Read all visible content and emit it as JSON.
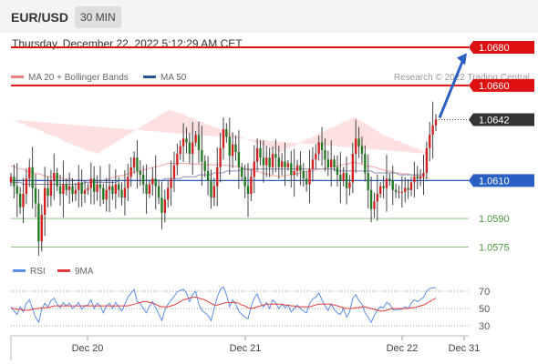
{
  "header": {
    "pair": "EUR/USD",
    "timeframe": "30 MIN"
  },
  "datetime": "Thursday, December 22, 2022 5:12:29 AM CET",
  "legend": {
    "ma20": {
      "label": "MA 20 + Bollinger Bands",
      "color": "#f08080"
    },
    "ma50": {
      "label": "MA 50",
      "color": "#2a5599"
    }
  },
  "credit": "Research © 2022 Trading Central",
  "rsi_legend": {
    "rsi": {
      "label": "RSI",
      "color": "#5b8ee6"
    },
    "ma9": {
      "label": "9MA",
      "color": "#e33b3b"
    }
  },
  "chart_data": {
    "type": "candlestick",
    "instrument": "EUR/USD",
    "interval": "30 MIN",
    "ylim": [
      1.057,
      1.0685
    ],
    "levels": [
      {
        "label": "1.0680",
        "value": 1.068,
        "kind": "resistance",
        "color": "#dd1111"
      },
      {
        "label": "1.0660",
        "value": 1.066,
        "kind": "resistance",
        "color": "#dd1111"
      },
      {
        "label": "1.0642",
        "value": 1.0642,
        "kind": "last",
        "color": "#333333"
      },
      {
        "label": "1.0610",
        "value": 1.061,
        "kind": "pivot",
        "color": "#2a5fc4"
      },
      {
        "label": "1.0590",
        "value": 1.059,
        "kind": "support",
        "color": "#4c9a3c"
      },
      {
        "label": "1.0575",
        "value": 1.0575,
        "kind": "support",
        "color": "#4c9a3c"
      }
    ],
    "x_ticks": [
      "Dec 20",
      "Dec 21",
      "Dec 22",
      "Dec 31"
    ],
    "projection": {
      "from": 1.0642,
      "to": 1.0676,
      "color": "#2a5fc4"
    },
    "candle_closes": [
      1.0612,
      1.0607,
      1.0603,
      1.0596,
      1.0603,
      1.0611,
      1.0617,
      1.0606,
      1.0598,
      1.0578,
      1.0592,
      1.0606,
      1.0602,
      1.061,
      1.0614,
      1.0607,
      1.0603,
      1.0608,
      1.0605,
      1.0607,
      1.0603,
      1.0605,
      1.0609,
      1.0603,
      1.0605,
      1.0606,
      1.0611,
      1.0604,
      1.0608,
      1.0606,
      1.06,
      1.0605,
      1.0607,
      1.0603,
      1.0608,
      1.0605,
      1.0601,
      1.0606,
      1.0612,
      1.0617,
      1.0622,
      1.0615,
      1.0613,
      1.0608,
      1.0603,
      1.0608,
      1.0611,
      1.0607,
      1.0601,
      1.0593,
      1.06,
      1.0606,
      1.0611,
      1.0618,
      1.0624,
      1.0628,
      1.0632,
      1.063,
      1.0624,
      1.063,
      1.0634,
      1.0626,
      1.062,
      1.0615,
      1.061,
      1.0601,
      1.0607,
      1.0617,
      1.0627,
      1.0637,
      1.0633,
      1.0623,
      1.0629,
      1.0625,
      1.0617,
      1.0612,
      1.0607,
      1.0603,
      1.0612,
      1.062,
      1.0627,
      1.0622,
      1.0618,
      1.0622,
      1.0617,
      1.0624,
      1.0622,
      1.0617,
      1.062,
      1.0617,
      1.0619,
      1.0613,
      1.0615,
      1.0618,
      1.0615,
      1.0611,
      1.0608,
      1.0616,
      1.0621,
      1.0624,
      1.063,
      1.0626,
      1.0621,
      1.0617,
      1.0621,
      1.0617,
      1.0613,
      1.061,
      1.0614,
      1.0606,
      1.0609,
      1.0624,
      1.0632,
      1.0628,
      1.0624,
      1.0614,
      1.0605,
      1.0595,
      1.0599,
      1.0603,
      1.0607,
      1.0606,
      1.0611,
      1.061,
      1.0605,
      1.0604,
      1.0604,
      1.0604,
      1.0606,
      1.0605,
      1.0609,
      1.0612,
      1.0611,
      1.0612,
      1.0614,
      1.0627,
      1.0634,
      1.0639,
      1.0642
    ],
    "band_upper": [
      1.0642,
      1.0642,
      1.0641,
      1.064,
      1.064,
      1.0639,
      1.0638,
      1.0638,
      1.0637,
      1.0637,
      1.0636,
      1.0635,
      1.0634,
      1.0634,
      1.0633,
      1.0633,
      1.0632,
      1.0631,
      1.063,
      1.063,
      1.0629,
      1.0628,
      1.0628,
      1.0627,
      1.0626,
      1.0626,
      1.0625,
      1.0625,
      1.0624,
      1.0625,
      1.0626,
      1.0627,
      1.0628,
      1.0629,
      1.063,
      1.0631,
      1.0632,
      1.0633,
      1.0634,
      1.0635,
      1.0636,
      1.0637,
      1.0638,
      1.0639,
      1.064,
      1.0641,
      1.0642,
      1.0643,
      1.0644,
      1.0645,
      1.0646,
      1.0647,
      1.0647,
      1.0646,
      1.0646,
      1.0645,
      1.0645,
      1.0644,
      1.0643,
      1.0643,
      1.0642,
      1.0641,
      1.0641,
      1.064,
      1.0639,
      1.0639,
      1.0638,
      1.0638,
      1.0637,
      1.0636,
      1.0636,
      1.0635,
      1.0634,
      1.0634,
      1.0633,
      1.0633,
      1.0632,
      1.0631,
      1.0631,
      1.063,
      1.0629,
      1.0629,
      1.0628,
      1.0628,
      1.0627,
      1.0626,
      1.0626,
      1.0625,
      1.0625,
      1.0626,
      1.0627,
      1.0628,
      1.0628,
      1.0629,
      1.063,
      1.0631,
      1.0632,
      1.0632,
      1.0633,
      1.0634,
      1.0635,
      1.0635,
      1.0636,
      1.0637,
      1.0638,
      1.0638,
      1.0639,
      1.064,
      1.0641,
      1.0641,
      1.0642,
      1.0643,
      1.0643,
      1.0642,
      1.0641,
      1.064,
      1.0639,
      1.0638,
      1.0637,
      1.0636,
      1.0635,
      1.0634,
      1.0633,
      1.0633,
      1.0632,
      1.0631,
      1.0631,
      1.063,
      1.0629,
      1.0629,
      1.0628,
      1.0627,
      1.0627,
      1.0626,
      1.0625,
      1.0625,
      1.0624
    ],
    "band_lower": [
      1.0593,
      1.0593,
      1.0592,
      1.0592,
      1.0592,
      1.0591,
      1.0591,
      1.0591,
      1.059,
      1.059,
      1.059,
      1.059,
      1.059,
      1.059,
      1.059,
      1.0591,
      1.0591,
      1.0591,
      1.0591,
      1.0592,
      1.0592,
      1.0592,
      1.0593,
      1.0593,
      1.0593,
      1.0594,
      1.0594,
      1.0594,
      1.0594,
      1.0594,
      1.0594,
      1.0594,
      1.0594,
      1.0594,
      1.0594,
      1.0594,
      1.0593,
      1.0593,
      1.0593,
      1.0593,
      1.0593,
      1.0592,
      1.0592,
      1.0592,
      1.0592,
      1.0592,
      1.0592,
      1.0591,
      1.0591,
      1.0591,
      1.0591,
      1.0591,
      1.0591,
      1.0592,
      1.0592,
      1.0593,
      1.0593,
      1.0594,
      1.0594,
      1.0595,
      1.0595,
      1.0596,
      1.0596,
      1.0597,
      1.0597,
      1.0598,
      1.0598,
      1.0599,
      1.0599,
      1.06,
      1.06,
      1.0601,
      1.0601,
      1.0601,
      1.0601,
      1.0601,
      1.06,
      1.06,
      1.06,
      1.06,
      1.06,
      1.06,
      1.0599,
      1.0599,
      1.0599,
      1.0599,
      1.0599,
      1.0599,
      1.0599,
      1.0599,
      1.0599,
      1.0598,
      1.0598,
      1.0598,
      1.0598,
      1.0598,
      1.0598,
      1.0598,
      1.0597,
      1.0597,
      1.0597,
      1.0597,
      1.0597,
      1.0597,
      1.0597,
      1.0597,
      1.0596,
      1.0596,
      1.0596,
      1.0596,
      1.0596,
      1.0596,
      1.0596,
      1.0596,
      1.0596,
      1.0596,
      1.0596,
      1.0597,
      1.0597,
      1.0597,
      1.0597,
      1.0597,
      1.0597,
      1.0597,
      1.0597,
      1.0597,
      1.0597,
      1.0597,
      1.0598,
      1.0598,
      1.0598,
      1.0598,
      1.0598,
      1.0598,
      1.0598,
      1.0598,
      1.0598
    ],
    "ma50": [
      1.0609,
      1.0609,
      1.0609,
      1.0609,
      1.0608,
      1.0608,
      1.0608,
      1.0608,
      1.0608,
      1.0608,
      1.0608,
      1.0608,
      1.0608,
      1.0608,
      1.0608,
      1.0608,
      1.0608,
      1.0608,
      1.0608,
      1.0608,
      1.0608,
      1.0608,
      1.0608,
      1.0608,
      1.0609,
      1.0609,
      1.0609,
      1.0609,
      1.0609,
      1.0609,
      1.0609,
      1.0609,
      1.0609,
      1.0609,
      1.0609,
      1.061,
      1.061,
      1.061,
      1.061,
      1.061,
      1.061,
      1.061,
      1.061,
      1.061,
      1.061,
      1.061,
      1.061,
      1.061,
      1.061,
      1.061,
      1.0611,
      1.0611,
      1.0611,
      1.0611,
      1.0611,
      1.0611,
      1.0612,
      1.0612,
      1.0612,
      1.0612,
      1.0612,
      1.0613,
      1.0613,
      1.0613,
      1.0613,
      1.0613,
      1.0614,
      1.0614,
      1.0614,
      1.0614,
      1.0615,
      1.0615,
      1.0615,
      1.0615,
      1.0615,
      1.0616,
      1.0616,
      1.0616,
      1.0616,
      1.0616,
      1.0616,
      1.0616,
      1.0616,
      1.0616,
      1.0616,
      1.0616,
      1.0616,
      1.0616,
      1.0616,
      1.0616,
      1.0616,
      1.0616,
      1.0616,
      1.0616,
      1.0616,
      1.0616,
      1.0616,
      1.0616,
      1.0616,
      1.0616,
      1.0616,
      1.0616,
      1.0616,
      1.0616,
      1.0616,
      1.0616,
      1.0615,
      1.0615,
      1.0615,
      1.0615,
      1.0615,
      1.0615,
      1.0615,
      1.0615,
      1.0615,
      1.0615,
      1.0615,
      1.0615,
      1.0614,
      1.0614,
      1.0614,
      1.0614,
      1.0614,
      1.0614,
      1.0614,
      1.0614,
      1.0613,
      1.0613,
      1.0613,
      1.0613,
      1.0613,
      1.0613,
      1.0613,
      1.0613,
      1.0613
    ],
    "rsi": {
      "levels": [
        70,
        50,
        30
      ],
      "ylim": [
        20,
        80
      ],
      "rsi": [
        52,
        47,
        43,
        52,
        46,
        56,
        60,
        50,
        40,
        34,
        49,
        56,
        52,
        59,
        62,
        55,
        51,
        57,
        53,
        56,
        50,
        53,
        57,
        49,
        53,
        54,
        60,
        50,
        56,
        53,
        45,
        53,
        56,
        50,
        57,
        52,
        47,
        55,
        63,
        68,
        72,
        58,
        56,
        50,
        45,
        53,
        58,
        51,
        44,
        36,
        48,
        55,
        60,
        64,
        69,
        71,
        72,
        68,
        58,
        66,
        70,
        55,
        48,
        45,
        42,
        36,
        50,
        63,
        72,
        75,
        66,
        52,
        60,
        55,
        47,
        43,
        40,
        38,
        52,
        62,
        67,
        57,
        52,
        57,
        50,
        60,
        56,
        50,
        55,
        51,
        54,
        46,
        50,
        54,
        50,
        47,
        45,
        56,
        61,
        63,
        68,
        60,
        53,
        48,
        55,
        49,
        45,
        43,
        50,
        40,
        46,
        62,
        66,
        59,
        55,
        45,
        40,
        34,
        42,
        48,
        52,
        51,
        57,
        55,
        49,
        48,
        49,
        49,
        52,
        50,
        56,
        60,
        58,
        60,
        63,
        70,
        73,
        74,
        74
      ],
      "ma9": [
        50,
        50,
        49,
        49,
        48,
        48,
        48,
        49,
        50,
        50,
        51,
        51,
        51,
        52,
        53,
        53,
        53,
        53,
        53,
        53,
        53,
        53,
        53,
        53,
        53,
        53,
        53,
        53,
        53,
        53,
        53,
        53,
        53,
        53,
        53,
        53,
        53,
        53,
        53,
        54,
        55,
        56,
        57,
        58,
        58,
        57,
        56,
        55,
        53,
        52,
        52,
        52,
        53,
        54,
        56,
        58,
        60,
        61,
        62,
        63,
        63,
        62,
        61,
        60,
        58,
        56,
        54,
        54,
        55,
        56,
        57,
        57,
        57,
        57,
        56,
        54,
        53,
        51,
        50,
        51,
        52,
        53,
        54,
        55,
        55,
        55,
        55,
        55,
        55,
        54,
        54,
        53,
        53,
        52,
        52,
        52,
        52,
        52,
        53,
        54,
        55,
        55,
        55,
        55,
        55,
        54,
        53,
        52,
        51,
        50,
        50,
        50,
        51,
        51,
        52,
        52,
        51,
        50,
        49,
        48,
        47,
        47,
        48,
        49,
        50,
        50,
        50,
        50,
        50,
        50,
        51,
        51,
        52,
        53,
        54,
        56,
        58,
        60,
        62
      ]
    }
  }
}
